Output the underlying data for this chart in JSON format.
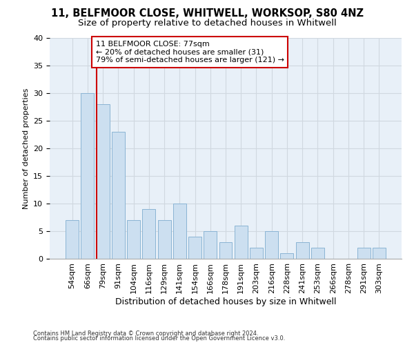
{
  "title1": "11, BELFMOOR CLOSE, WHITWELL, WORKSOP, S80 4NZ",
  "title2": "Size of property relative to detached houses in Whitwell",
  "xlabel": "Distribution of detached houses by size in Whitwell",
  "ylabel": "Number of detached properties",
  "footnote1": "Contains HM Land Registry data © Crown copyright and database right 2024.",
  "footnote2": "Contains public sector information licensed under the Open Government Licence v3.0.",
  "bar_labels": [
    "54sqm",
    "66sqm",
    "79sqm",
    "91sqm",
    "104sqm",
    "116sqm",
    "129sqm",
    "141sqm",
    "154sqm",
    "166sqm",
    "178sqm",
    "191sqm",
    "203sqm",
    "216sqm",
    "228sqm",
    "241sqm",
    "253sqm",
    "266sqm",
    "278sqm",
    "291sqm",
    "303sqm"
  ],
  "bar_values": [
    7,
    30,
    28,
    23,
    7,
    9,
    7,
    10,
    4,
    5,
    3,
    6,
    2,
    5,
    1,
    3,
    2,
    0,
    0,
    2,
    2
  ],
  "bar_color": "#ccdff0",
  "bar_edge_color": "#8ab4d4",
  "vline_color": "#cc0000",
  "vline_x_idx": 2,
  "ann_title": "11 BELFMOOR CLOSE: 77sqm",
  "ann_line1": "← 20% of detached houses are smaller (31)",
  "ann_line2": "79% of semi-detached houses are larger (121) →",
  "ann_box_fc": "#ffffff",
  "ann_box_ec": "#cc0000",
  "ylim": [
    0,
    40
  ],
  "yticks": [
    0,
    5,
    10,
    15,
    20,
    25,
    30,
    35,
    40
  ],
  "grid_color": "#d0d8e0",
  "bg_color": "#e8f0f8",
  "title1_fontsize": 10.5,
  "title2_fontsize": 9.5,
  "xlabel_fontsize": 9,
  "ylabel_fontsize": 8,
  "tick_fontsize": 8,
  "ann_fontsize": 8,
  "footnote_fontsize": 6
}
